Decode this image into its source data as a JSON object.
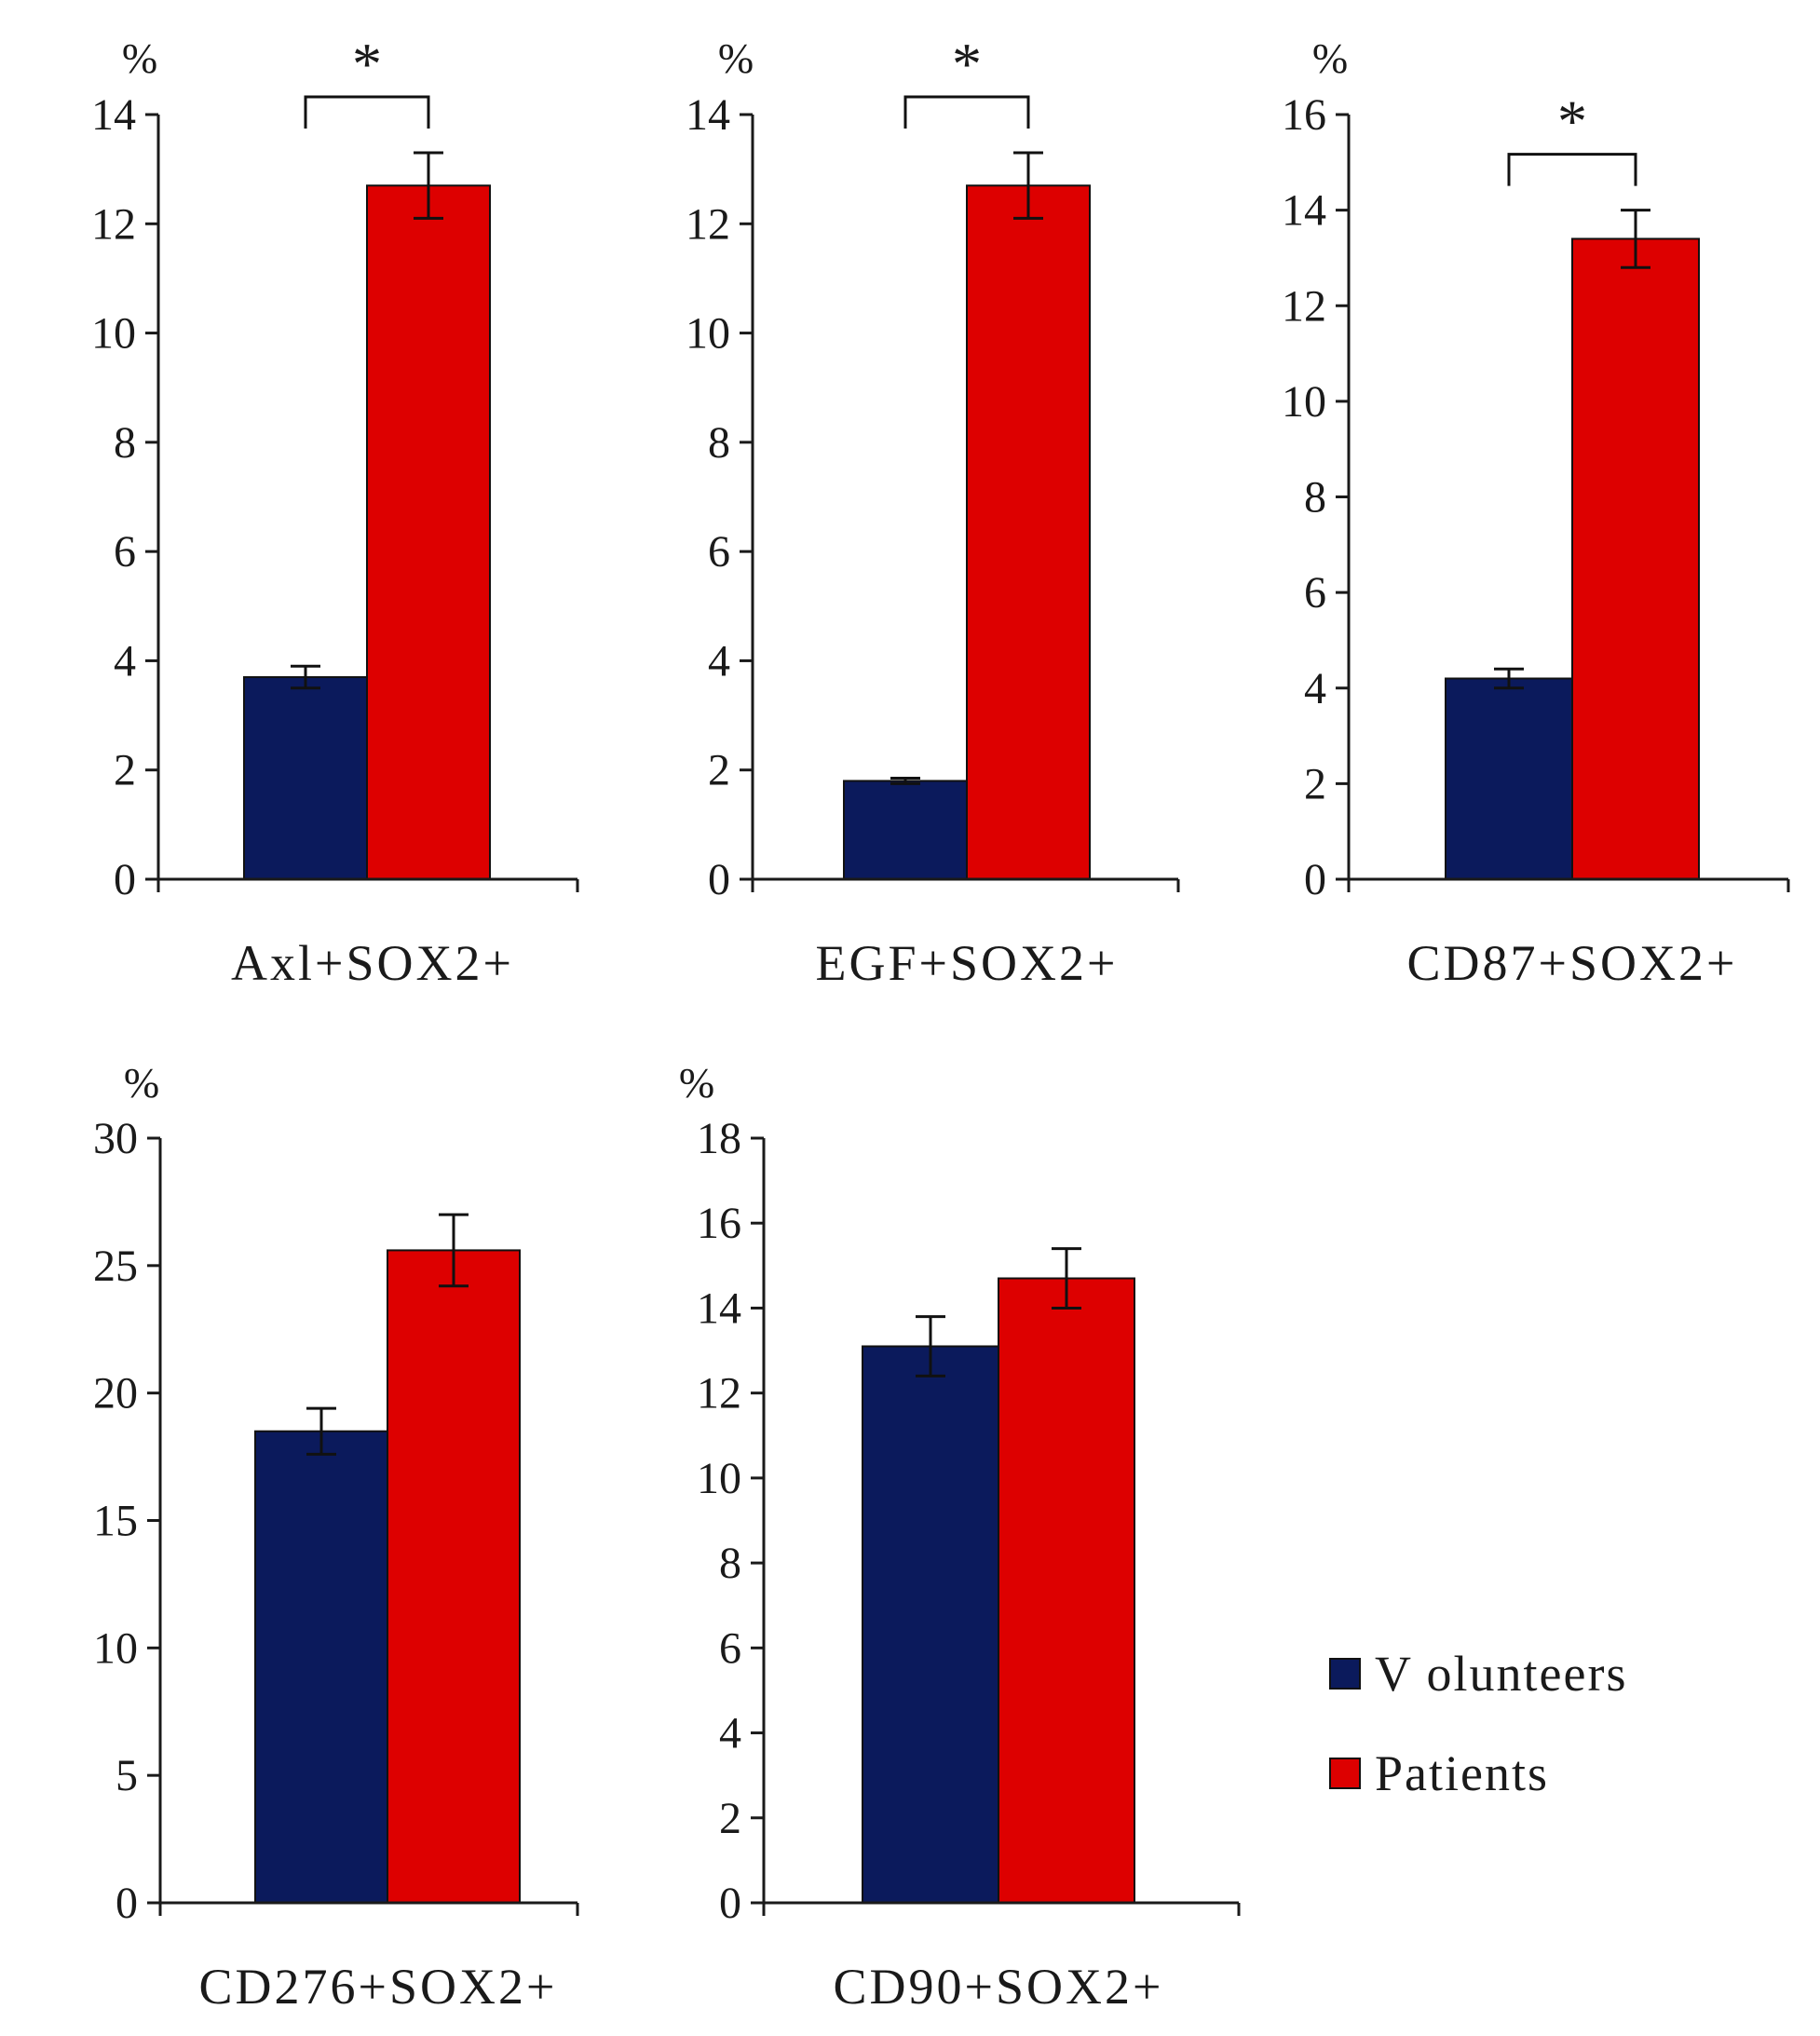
{
  "colors": {
    "Volunteers": "#0b1a5c",
    "Patients": "#dd0000",
    "axis": "#1a1a1a"
  },
  "legend": {
    "position": "bottom-right",
    "entries": [
      {
        "name": "Volunteers",
        "label": "V olunteers"
      },
      {
        "name": "Patients",
        "label": "Patients"
      }
    ]
  },
  "chart_data": [
    {
      "type": "bar",
      "xlabel": "Axl+SOX2+",
      "ylabel": "%",
      "ylim": [
        0,
        14
      ],
      "yticks": [
        0,
        2,
        4,
        6,
        8,
        10,
        12,
        14
      ],
      "significance": "*",
      "series": [
        {
          "name": "Volunteers",
          "value": 3.7,
          "error": 0.2
        },
        {
          "name": "Patients",
          "value": 12.7,
          "error": 0.6
        }
      ]
    },
    {
      "type": "bar",
      "xlabel": "EGF+SOX2+",
      "ylabel": "%",
      "ylim": [
        0,
        14
      ],
      "yticks": [
        0,
        2,
        4,
        6,
        8,
        10,
        12,
        14
      ],
      "significance": "*",
      "series": [
        {
          "name": "Volunteers",
          "value": 1.8,
          "error": 0.05
        },
        {
          "name": "Patients",
          "value": 12.7,
          "error": 0.6
        }
      ]
    },
    {
      "type": "bar",
      "xlabel": "CD87+SOX2+",
      "ylabel": "%",
      "ylim": [
        0,
        16
      ],
      "yticks": [
        0,
        2,
        4,
        6,
        8,
        10,
        12,
        14,
        16
      ],
      "significance": "*",
      "series": [
        {
          "name": "Volunteers",
          "value": 4.2,
          "error": 0.2
        },
        {
          "name": "Patients",
          "value": 13.4,
          "error": 0.6
        }
      ]
    },
    {
      "type": "bar",
      "xlabel": "CD276+SOX2+",
      "ylabel": "%",
      "ylim": [
        0,
        30
      ],
      "yticks": [
        0,
        5,
        10,
        15,
        20,
        25,
        30
      ],
      "significance": "",
      "series": [
        {
          "name": "Volunteers",
          "value": 18.5,
          "error": 0.9
        },
        {
          "name": "Patients",
          "value": 25.6,
          "error": 1.4
        }
      ]
    },
    {
      "type": "bar",
      "xlabel": "CD90+SOX2+",
      "ylabel": "%",
      "ylim": [
        0,
        18
      ],
      "yticks": [
        0,
        2,
        4,
        6,
        8,
        10,
        12,
        14,
        16,
        18
      ],
      "significance": "",
      "series": [
        {
          "name": "Volunteers",
          "value": 13.1,
          "error": 0.7
        },
        {
          "name": "Patients",
          "value": 14.7,
          "error": 0.7
        }
      ]
    }
  ]
}
